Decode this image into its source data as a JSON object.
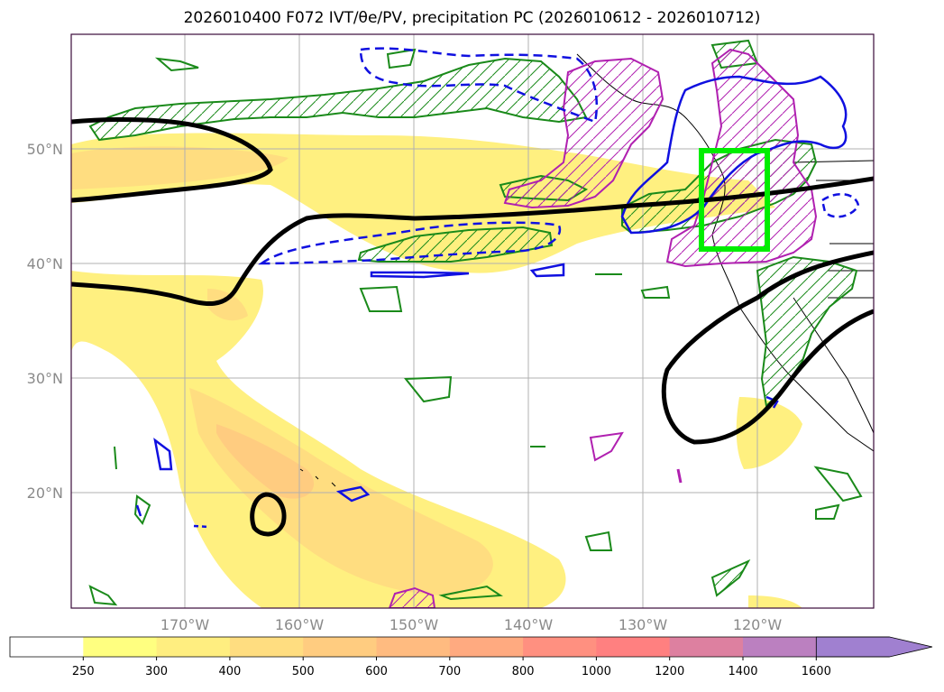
{
  "title": "2026010400 F072 IVT/θe/PV, precipitation PC (2026010612 - 2026010712)",
  "lat_labels": [
    "50°N",
    "40°N",
    "30°N",
    "20°N"
  ],
  "lon_labels": [
    "170°W",
    "160°W",
    "150°W",
    "140°W",
    "130°W",
    "120°W"
  ],
  "colorbar": {
    "ticks": [
      "250",
      "300",
      "400",
      "500",
      "600",
      "700",
      "800",
      "1000",
      "1200",
      "1400",
      "1600"
    ],
    "colors": [
      "#ffffff",
      "#ffff80",
      "#ffee80",
      "#ffdd80",
      "#ffcc80",
      "#ffbb80",
      "#ffaa80",
      "#ff9080",
      "#ff8080",
      "#dd80a0",
      "#bb80c0",
      "#a080d0"
    ],
    "extend": "max"
  },
  "legend_semantics": {
    "shading": "IVT",
    "black_contour": "θe",
    "blue_contour": "PV",
    "green_hatched": "precipitation PC (positive)",
    "magenta_hatched": "precipitation PC (negative)",
    "highlight_box_color": "#00ee00"
  }
}
